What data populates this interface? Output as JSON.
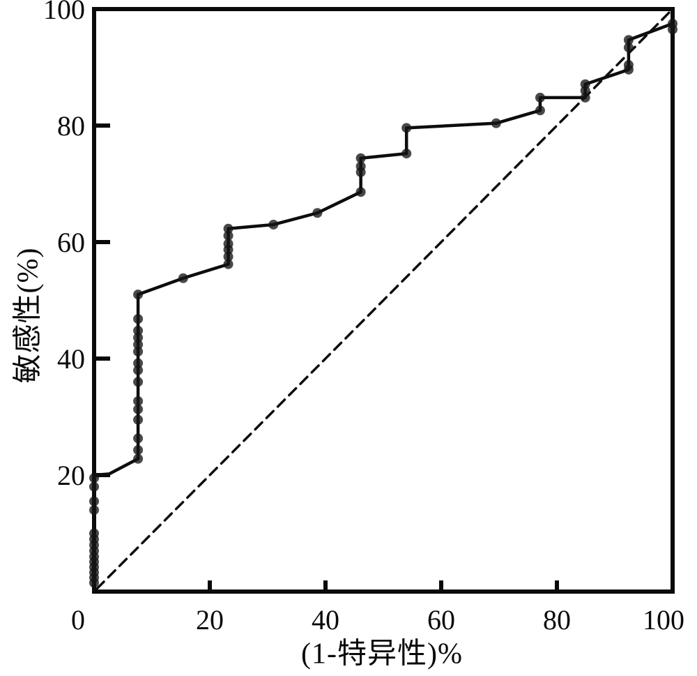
{
  "figure": {
    "background": "#ffffff",
    "ink_color": "#0a0a0a",
    "dot_color": "#161616",
    "curve_color": "#0d0d0d"
  },
  "chart_data": {
    "type": "line",
    "title": "",
    "xlabel": "(1-特异性)%",
    "ylabel": "敏感性(%)",
    "xlim": [
      0,
      100
    ],
    "ylim": [
      0,
      100
    ],
    "x_ticks": [
      0,
      20,
      40,
      60,
      80,
      100
    ],
    "y_ticks": [
      20,
      40,
      60,
      80,
      100
    ],
    "grid": false,
    "legend": "none",
    "series": [
      {
        "name": "roc-curve",
        "style": "solid",
        "points": [
          [
            0,
            0
          ],
          [
            0,
            20
          ],
          [
            2.6,
            20.2
          ],
          [
            7.6,
            22.8
          ],
          [
            7.6,
            51.0
          ],
          [
            15.4,
            53.8
          ],
          [
            23.2,
            56.2
          ],
          [
            23.2,
            62.3
          ],
          [
            31.0,
            63.0
          ],
          [
            38.6,
            65.0
          ],
          [
            46.1,
            68.6
          ],
          [
            46.1,
            74.4
          ],
          [
            54.0,
            75.2
          ],
          [
            54.0,
            79.6
          ],
          [
            69.5,
            80.4
          ],
          [
            77.1,
            82.6
          ],
          [
            77.1,
            84.8
          ],
          [
            84.9,
            84.8
          ],
          [
            84.9,
            87.1
          ],
          [
            92.4,
            89.6
          ],
          [
            92.4,
            94.7
          ],
          [
            100,
            97.5
          ]
        ]
      },
      {
        "name": "reference-diagonal",
        "style": "dashed",
        "points": [
          [
            0.5,
            0.5
          ],
          [
            100,
            100
          ]
        ]
      }
    ],
    "markers": [
      [
        0,
        1.5
      ],
      [
        0,
        2.4
      ],
      [
        0,
        3.3
      ],
      [
        0,
        4.2
      ],
      [
        0,
        5.1
      ],
      [
        0,
        6.0
      ],
      [
        0,
        7.0
      ],
      [
        0,
        8.0
      ],
      [
        0,
        9.0
      ],
      [
        0,
        10.0
      ],
      [
        0,
        14.0
      ],
      [
        0,
        15.5
      ],
      [
        0,
        18.0
      ],
      [
        0,
        19.5
      ],
      [
        7.6,
        22.8
      ],
      [
        7.6,
        24.3
      ],
      [
        7.6,
        26.3
      ],
      [
        7.6,
        29.5
      ],
      [
        7.6,
        31.3
      ],
      [
        7.6,
        32.7
      ],
      [
        7.6,
        36.0
      ],
      [
        7.6,
        38.0
      ],
      [
        7.6,
        39.2
      ],
      [
        7.6,
        41.2
      ],
      [
        7.6,
        42.4
      ],
      [
        7.6,
        43.6
      ],
      [
        7.6,
        44.8
      ],
      [
        7.6,
        46.8
      ],
      [
        7.6,
        51.0
      ],
      [
        15.4,
        53.8
      ],
      [
        23.2,
        56.2
      ],
      [
        23.2,
        57.5
      ],
      [
        23.2,
        58.7
      ],
      [
        23.2,
        59.7
      ],
      [
        23.2,
        61.1
      ],
      [
        23.2,
        62.3
      ],
      [
        31.0,
        63.0
      ],
      [
        38.6,
        65.0
      ],
      [
        46.1,
        68.6
      ],
      [
        46.1,
        72.0
      ],
      [
        46.1,
        73.0
      ],
      [
        46.1,
        74.4
      ],
      [
        54.0,
        75.2
      ],
      [
        54.0,
        79.6
      ],
      [
        69.5,
        80.4
      ],
      [
        77.1,
        82.6
      ],
      [
        77.1,
        84.8
      ],
      [
        84.9,
        84.8
      ],
      [
        84.9,
        86.0
      ],
      [
        84.9,
        87.1
      ],
      [
        92.4,
        89.6
      ],
      [
        92.4,
        90.4
      ],
      [
        92.4,
        93.4
      ],
      [
        92.4,
        94.7
      ],
      [
        100,
        96.5
      ],
      [
        100,
        97.5
      ]
    ]
  }
}
